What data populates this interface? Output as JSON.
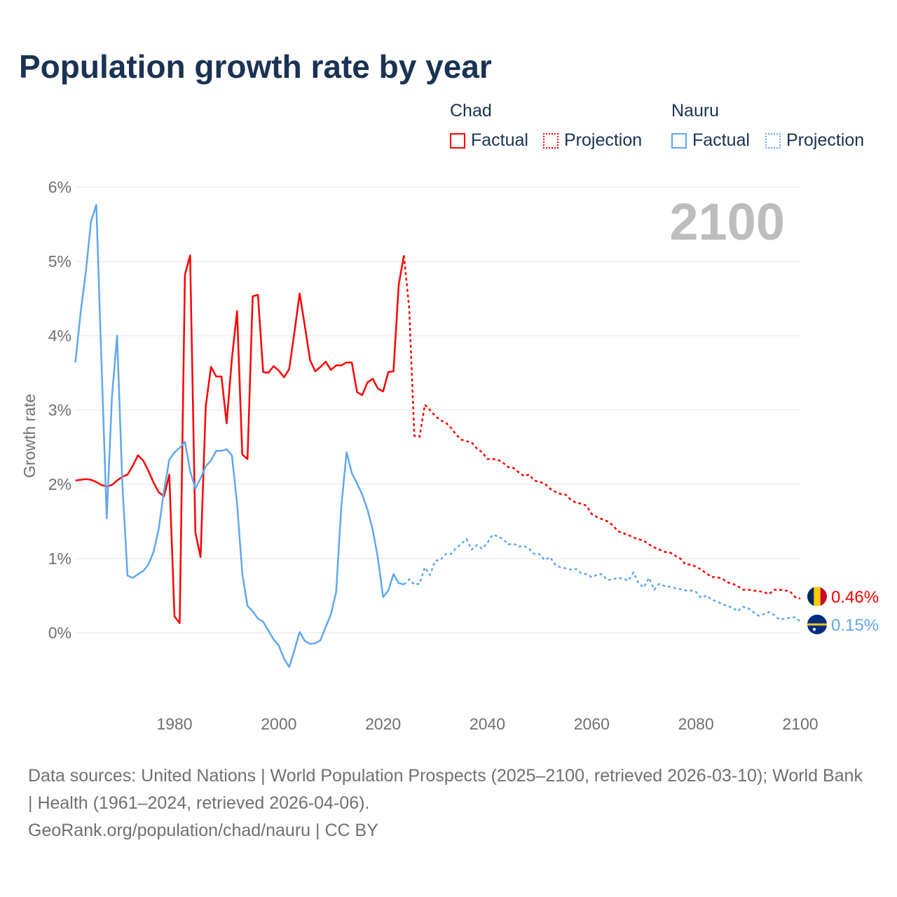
{
  "title": "Population growth rate by year",
  "legend": {
    "groups": [
      {
        "name": "Chad",
        "color": "#ff0000",
        "factual": "Factual",
        "projection": "Projection"
      },
      {
        "name": "Nauru",
        "color": "#5fa8ee",
        "factual": "Factual",
        "projection": "Projection"
      }
    ]
  },
  "footer": {
    "line1": "Data sources: United Nations | World Population Prospects (2025–2100, retrieved 2026-03-10); World Bank | Health (1961–2024, retrieved 2026-04-06).",
    "line2": "GeoRank.org/population/chad/nauru | CC BY"
  },
  "chart_data": {
    "type": "line",
    "ylabel": "Growth rate",
    "year_watermark": "2100",
    "xlim": [
      1961,
      2100
    ],
    "ylim": [
      -1,
      6
    ],
    "xticks": [
      1980,
      2000,
      2020,
      2040,
      2060,
      2080,
      2100
    ],
    "xtick_labels": [
      "1980",
      "2000",
      "2020",
      "2040",
      "2060",
      "2080",
      "2100"
    ],
    "yticks": [
      0,
      1,
      2,
      3,
      4,
      5,
      6
    ],
    "ytick_labels": [
      "0%",
      "1%",
      "2%",
      "3%",
      "4%",
      "5%",
      "6%"
    ],
    "grid": true,
    "series": [
      {
        "name": "Chad",
        "color": "#ff0000",
        "end_label": "0.46%",
        "flag": "chad-flag",
        "factual_start": 1961,
        "factual": [
          2.05,
          2.06,
          2.07,
          2.06,
          2.03,
          1.99,
          1.97,
          1.99,
          2.05,
          2.1,
          2.13,
          2.25,
          2.39,
          2.32,
          2.18,
          2.02,
          1.89,
          1.84,
          2.13,
          0.22,
          0.13,
          4.82,
          5.08,
          1.35,
          1.02,
          3.05,
          3.58,
          3.45,
          3.45,
          2.82,
          3.69,
          4.33,
          2.4,
          2.34,
          4.53,
          4.55,
          3.51,
          3.5,
          3.59,
          3.53,
          3.44,
          3.55,
          4.05,
          4.57,
          4.13,
          3.67,
          3.52,
          3.58,
          3.65,
          3.54,
          3.6,
          3.6,
          3.64,
          3.64,
          3.24,
          3.2,
          3.37,
          3.42,
          3.29,
          3.25,
          3.51,
          3.52,
          4.69,
          5.08
        ],
        "projection_start": 2024,
        "projection": [
          5.08,
          4.37,
          2.65,
          2.64,
          3.07,
          3.0,
          2.92,
          2.86,
          2.83,
          2.76,
          2.67,
          2.6,
          2.58,
          2.56,
          2.48,
          2.43,
          2.34,
          2.34,
          2.33,
          2.29,
          2.23,
          2.22,
          2.16,
          2.11,
          2.13,
          2.05,
          2.03,
          2.01,
          1.94,
          1.9,
          1.87,
          1.86,
          1.79,
          1.75,
          1.74,
          1.71,
          1.6,
          1.56,
          1.53,
          1.5,
          1.45,
          1.37,
          1.34,
          1.32,
          1.28,
          1.26,
          1.24,
          1.19,
          1.15,
          1.12,
          1.09,
          1.08,
          1.04,
          1.0,
          0.92,
          0.92,
          0.89,
          0.85,
          0.8,
          0.75,
          0.75,
          0.73,
          0.68,
          0.66,
          0.63,
          0.58,
          0.58,
          0.57,
          0.56,
          0.55,
          0.52,
          0.58,
          0.58,
          0.57,
          0.56,
          0.48,
          0.46
        ]
      },
      {
        "name": "Nauru",
        "color": "#5fa8ee",
        "end_label": "0.15%",
        "flag": "nauru-flag",
        "factual_start": 1961,
        "factual": [
          3.64,
          4.31,
          4.86,
          5.54,
          5.76,
          3.65,
          1.54,
          3.17,
          4.0,
          2.0,
          0.77,
          0.74,
          0.79,
          0.83,
          0.92,
          1.09,
          1.41,
          1.92,
          2.33,
          2.43,
          2.49,
          2.57,
          2.18,
          1.94,
          2.08,
          2.24,
          2.32,
          2.45,
          2.45,
          2.47,
          2.39,
          1.74,
          0.8,
          0.36,
          0.29,
          0.19,
          0.15,
          0.03,
          -0.09,
          -0.17,
          -0.35,
          -0.46,
          -0.23,
          0.01,
          -0.11,
          -0.15,
          -0.14,
          -0.1,
          0.08,
          0.25,
          0.55,
          1.71,
          2.43,
          2.15,
          2.01,
          1.86,
          1.66,
          1.39,
          1.01,
          0.48,
          0.57,
          0.79,
          0.67,
          0.65
        ],
        "projection_start": 2024,
        "projection": [
          0.65,
          0.72,
          0.65,
          0.66,
          0.88,
          0.78,
          0.97,
          0.98,
          1.06,
          1.06,
          1.14,
          1.2,
          1.26,
          1.12,
          1.18,
          1.13,
          1.21,
          1.32,
          1.3,
          1.26,
          1.19,
          1.2,
          1.16,
          1.17,
          1.13,
          1.06,
          1.06,
          0.98,
          1.02,
          0.92,
          0.88,
          0.87,
          0.85,
          0.86,
          0.8,
          0.79,
          0.75,
          0.78,
          0.79,
          0.71,
          0.72,
          0.74,
          0.73,
          0.7,
          0.81,
          0.67,
          0.61,
          0.74,
          0.58,
          0.66,
          0.63,
          0.62,
          0.6,
          0.59,
          0.57,
          0.57,
          0.55,
          0.47,
          0.5,
          0.45,
          0.42,
          0.39,
          0.36,
          0.34,
          0.29,
          0.35,
          0.33,
          0.28,
          0.23,
          0.25,
          0.28,
          0.24,
          0.18,
          0.19,
          0.2,
          0.21,
          0.15
        ]
      }
    ]
  }
}
